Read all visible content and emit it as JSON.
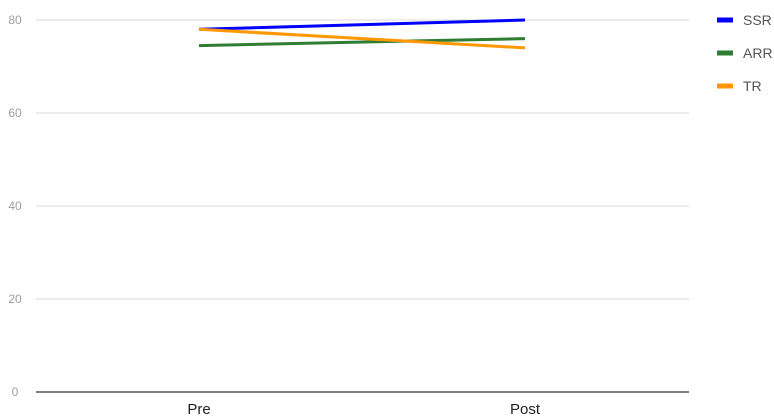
{
  "chart_data": {
    "type": "line",
    "title": "",
    "xlabel": "",
    "ylabel": "",
    "categories": [
      "Pre",
      "Post"
    ],
    "ylim": [
      0,
      80
    ],
    "yticks": [
      0,
      20,
      40,
      60,
      80
    ],
    "grid": true,
    "legend_position": "right",
    "series": [
      {
        "name": "SSR",
        "color": "#0000ff",
        "values": [
          78,
          80
        ]
      },
      {
        "name": "ARR",
        "color": "#2e7d32",
        "values": [
          74.5,
          76
        ]
      },
      {
        "name": "TR",
        "color": "#ff9800",
        "values": [
          78,
          74
        ]
      }
    ]
  }
}
